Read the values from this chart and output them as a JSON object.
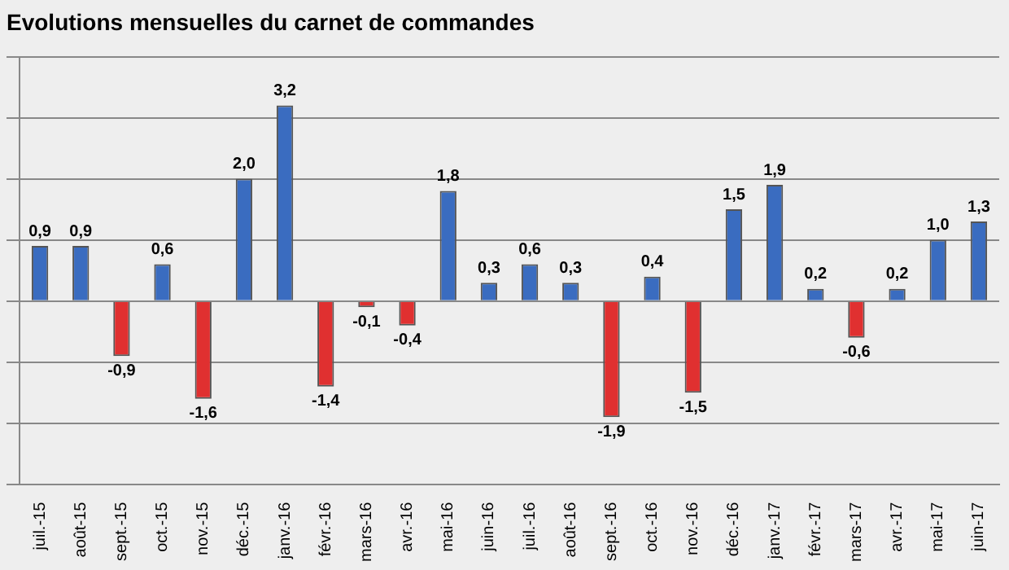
{
  "chart_data": {
    "type": "bar",
    "title": "Evolutions mensuelles du carnet de commandes",
    "categories": [
      "juil.-15",
      "août-15",
      "sept.-15",
      "oct.-15",
      "nov.-15",
      "déc.-15",
      "janv.-16",
      "févr.-16",
      "mars-16",
      "avr.-16",
      "mai-16",
      "juin-16",
      "juil.-16",
      "août-16",
      "sept.-16",
      "oct.-16",
      "nov.-16",
      "déc.-16",
      "janv.-17",
      "févr.-17",
      "mars-17",
      "avr.-17",
      "mai-17",
      "juin-17"
    ],
    "values": [
      0.9,
      0.9,
      -0.9,
      0.6,
      -1.6,
      2.0,
      3.2,
      -1.4,
      -0.1,
      -0.4,
      1.8,
      0.3,
      0.6,
      0.3,
      -1.9,
      0.4,
      -1.5,
      1.5,
      1.9,
      0.2,
      -0.6,
      0.2,
      1.0,
      1.3
    ],
    "value_labels": [
      "0,9",
      "0,9",
      "-0,9",
      "0,6",
      "-1,6",
      "2,0",
      "3,2",
      "-1,4",
      "-0,1",
      "-0,4",
      "1,8",
      "0,3",
      "0,6",
      "0,3",
      "-1,9",
      "0,4",
      "-1,5",
      "1,5",
      "1,9",
      "0,2",
      "-0,6",
      "0,2",
      "1,0",
      "1,3"
    ],
    "colors": [
      "#3a6cc0",
      "#3a6cc0",
      "#e03030",
      "#3a6cc0",
      "#e03030",
      "#3a6cc0",
      "#3a6cc0",
      "#e03030",
      "#e03030",
      "#e03030",
      "#3a6cc0",
      "#3a6cc0",
      "#3a6cc0",
      "#3a6cc0",
      "#e03030",
      "#3a6cc0",
      "#e03030",
      "#3a6cc0",
      "#3a6cc0",
      "#3a6cc0",
      "#e03030",
      "#3a6cc0",
      "#3a6cc0",
      "#3a6cc0"
    ],
    "grid": "y",
    "tick_labels": "x",
    "legend": false
  }
}
